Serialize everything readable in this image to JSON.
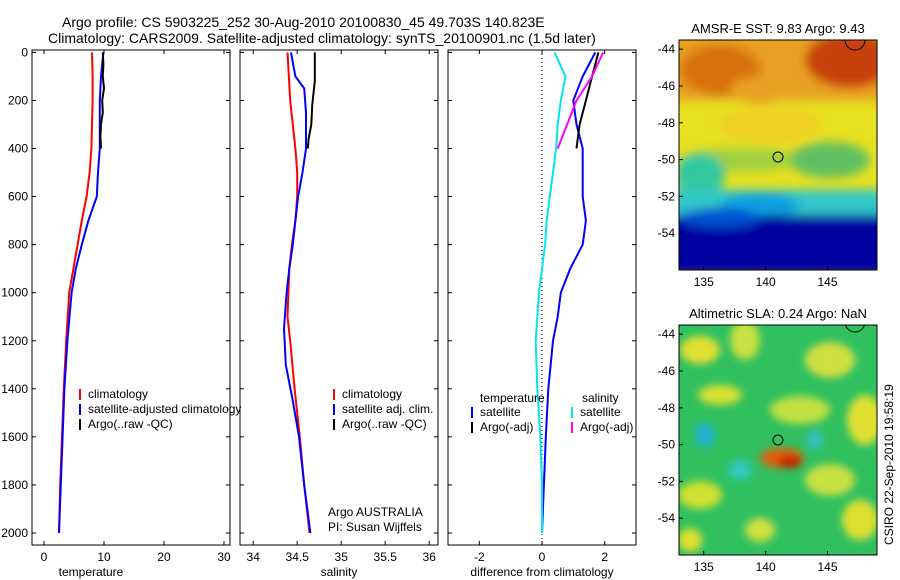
{
  "header": {
    "title_line1": "Argo profile: CS 5903225_252 30-Aug-2010 20100830_45 49.703S 140.823E",
    "title_line2": "Climatology: CARS2009. Satellite-adjusted climatology: synTS_20100901.nc (1.5d later)"
  },
  "side_label": "CSIRO 22-Sep-2010 19:58:19",
  "colors": {
    "climatology": "#ff0000",
    "satellite": "#0000ff",
    "argo": "#000000",
    "cyan": "#00e5ee",
    "magenta": "#ff00ff"
  },
  "chart_data": [
    {
      "id": "temperature",
      "type": "line",
      "xlabel": "temperature",
      "ylabel": "",
      "xlim": [
        -2,
        31
      ],
      "ylim": [
        2050,
        -10
      ],
      "xticks": [
        0,
        10,
        20,
        30
      ],
      "yticks": [
        0,
        200,
        400,
        600,
        800,
        1000,
        1200,
        1400,
        1600,
        1800,
        2000
      ],
      "legend": [
        "climatology",
        "satellite-adjusted climatology",
        "Argo(..raw -QC)"
      ],
      "legend_position": "lower-right",
      "series": [
        {
          "name": "climatology",
          "color": "#ff0000",
          "points": [
            [
              8.0,
              0
            ],
            [
              8.1,
              100
            ],
            [
              8.1,
              200
            ],
            [
              8.0,
              300
            ],
            [
              7.9,
              400
            ],
            [
              7.6,
              500
            ],
            [
              7.1,
              600
            ],
            [
              6.3,
              700
            ],
            [
              5.6,
              800
            ],
            [
              4.9,
              900
            ],
            [
              4.2,
              1000
            ],
            [
              3.7,
              1200
            ],
            [
              3.3,
              1400
            ],
            [
              3.0,
              1600
            ],
            [
              2.7,
              1800
            ],
            [
              2.5,
              2000
            ]
          ]
        },
        {
          "name": "satellite-adjusted climatology",
          "color": "#0000ff",
          "points": [
            [
              9.9,
              0
            ],
            [
              9.5,
              100
            ],
            [
              9.3,
              200
            ],
            [
              9.3,
              300
            ],
            [
              9.3,
              400
            ],
            [
              9.0,
              500
            ],
            [
              8.8,
              600
            ],
            [
              7.4,
              700
            ],
            [
              6.3,
              800
            ],
            [
              5.3,
              900
            ],
            [
              4.6,
              1000
            ],
            [
              3.9,
              1200
            ],
            [
              3.4,
              1400
            ],
            [
              3.1,
              1600
            ],
            [
              2.8,
              1800
            ],
            [
              2.5,
              2000
            ]
          ]
        },
        {
          "name": "Argo(..raw -QC)",
          "color": "#000000",
          "points": [
            [
              9.8,
              0
            ],
            [
              9.9,
              50
            ],
            [
              9.8,
              100
            ],
            [
              10.0,
              150
            ],
            [
              9.7,
              200
            ],
            [
              9.8,
              250
            ],
            [
              9.5,
              300
            ],
            [
              9.4,
              350
            ],
            [
              9.5,
              400
            ]
          ]
        }
      ]
    },
    {
      "id": "salinity",
      "type": "line",
      "xlabel": "salinity",
      "ylabel": "",
      "xlim": [
        33.85,
        36.1
      ],
      "ylim": [
        2050,
        -10
      ],
      "xticks": [
        34,
        34.5,
        35,
        35.5,
        36
      ],
      "legend": [
        "climatology",
        "satellite adj. clim.",
        "Argo(..raw -QC)"
      ],
      "legend_position": "lower-right",
      "annotation_line1": "Argo AUSTRALIA",
      "annotation_line2": "PI: Susan Wijffels",
      "series": [
        {
          "name": "climatology",
          "color": "#ff0000",
          "points": [
            [
              34.39,
              0
            ],
            [
              34.42,
              200
            ],
            [
              34.48,
              400
            ],
            [
              34.5,
              500
            ],
            [
              34.5,
              600
            ],
            [
              34.48,
              700
            ],
            [
              34.44,
              800
            ],
            [
              34.41,
              900
            ],
            [
              34.4,
              1000
            ],
            [
              34.39,
              1100
            ],
            [
              34.42,
              1200
            ],
            [
              34.47,
              1400
            ],
            [
              34.53,
              1600
            ],
            [
              34.58,
              1800
            ],
            [
              34.64,
              2000
            ]
          ]
        },
        {
          "name": "satellite adj. clim.",
          "color": "#0000ff",
          "points": [
            [
              34.43,
              0
            ],
            [
              34.48,
              100
            ],
            [
              34.58,
              150
            ],
            [
              34.6,
              250
            ],
            [
              34.6,
              400
            ],
            [
              34.56,
              500
            ],
            [
              34.51,
              600
            ],
            [
              34.48,
              700
            ],
            [
              34.45,
              800
            ],
            [
              34.41,
              900
            ],
            [
              34.38,
              1000
            ],
            [
              34.35,
              1150
            ],
            [
              34.37,
              1300
            ],
            [
              34.45,
              1450
            ],
            [
              34.52,
              1600
            ],
            [
              34.58,
              1800
            ],
            [
              34.65,
              2000
            ]
          ]
        },
        {
          "name": "Argo(..raw -QC)",
          "color": "#000000",
          "points": [
            [
              34.7,
              0
            ],
            [
              34.7,
              120
            ],
            [
              34.67,
              220
            ],
            [
              34.66,
              300
            ],
            [
              34.63,
              360
            ],
            [
              34.62,
              400
            ]
          ]
        }
      ]
    },
    {
      "id": "difference",
      "type": "line",
      "xlabel": "difference from climatology",
      "ylabel": "",
      "xlim": [
        -3,
        3
      ],
      "ylim": [
        2050,
        -10
      ],
      "xticks": [
        -2,
        0,
        2
      ],
      "legend_temperature_title": "temperature",
      "legend_salinity_title": "salinity",
      "legend": [
        "satellite",
        "Argo(-adj)",
        "satellite",
        "Argo(-adj)"
      ],
      "series": [
        {
          "name": "temperature satellite",
          "color": "#0000ff",
          "points": [
            [
              1.7,
              0
            ],
            [
              1.3,
              100
            ],
            [
              1.0,
              200
            ],
            [
              1.1,
              300
            ],
            [
              1.3,
              400
            ],
            [
              1.3,
              500
            ],
            [
              1.3,
              600
            ],
            [
              1.4,
              700
            ],
            [
              1.3,
              800
            ],
            [
              0.9,
              900
            ],
            [
              0.6,
              1000
            ],
            [
              0.5,
              1100
            ],
            [
              0.35,
              1200
            ],
            [
              0.2,
              1400
            ],
            [
              0.12,
              1600
            ],
            [
              0.06,
              1800
            ],
            [
              0.0,
              2000
            ]
          ]
        },
        {
          "name": "temperature Argo(-adj)",
          "color": "#000000",
          "points": [
            [
              1.8,
              0
            ],
            [
              1.6,
              100
            ],
            [
              1.4,
              200
            ],
            [
              1.2,
              300
            ],
            [
              1.1,
              400
            ]
          ]
        },
        {
          "name": "salinity satellite",
          "color": "#00e5ee",
          "points": [
            [
              0.4,
              0
            ],
            [
              0.75,
              100
            ],
            [
              0.6,
              200
            ],
            [
              0.5,
              300
            ],
            [
              0.45,
              400
            ],
            [
              0.35,
              500
            ],
            [
              0.25,
              600
            ],
            [
              0.15,
              700
            ],
            [
              0.1,
              800
            ],
            [
              0.0,
              900
            ],
            [
              -0.1,
              1000
            ],
            [
              -0.15,
              1100
            ],
            [
              -0.2,
              1200
            ],
            [
              -0.15,
              1400
            ],
            [
              -0.05,
              1600
            ],
            [
              0.0,
              1800
            ],
            [
              0.0,
              2000
            ]
          ]
        },
        {
          "name": "salinity Argo(-adj)",
          "color": "#ff00ff",
          "points": [
            [
              1.95,
              0
            ],
            [
              1.6,
              100
            ],
            [
              1.1,
              200
            ],
            [
              0.8,
              300
            ],
            [
              0.5,
              400
            ]
          ]
        }
      ]
    },
    {
      "id": "sst_map",
      "type": "heatmap",
      "title": "AMSR-E SST: 9.83 Argo: 9.43",
      "xticks": [
        135,
        140,
        145
      ],
      "yticks": [
        -44,
        -46,
        -48,
        -50,
        -52,
        -54
      ],
      "xlim": [
        133,
        149
      ],
      "ylim": [
        -56,
        -43.5
      ],
      "marker": [
        140.8,
        -49.7
      ]
    },
    {
      "id": "sla_map",
      "type": "heatmap",
      "title": "Altimetric SLA: 0.24 Argo: NaN",
      "xticks": [
        135,
        140,
        145
      ],
      "yticks": [
        -44,
        -46,
        -48,
        -50,
        -52,
        -54
      ],
      "xlim": [
        133,
        149
      ],
      "ylim": [
        -56,
        -43.5
      ],
      "marker": [
        140.8,
        -49.7
      ]
    }
  ]
}
